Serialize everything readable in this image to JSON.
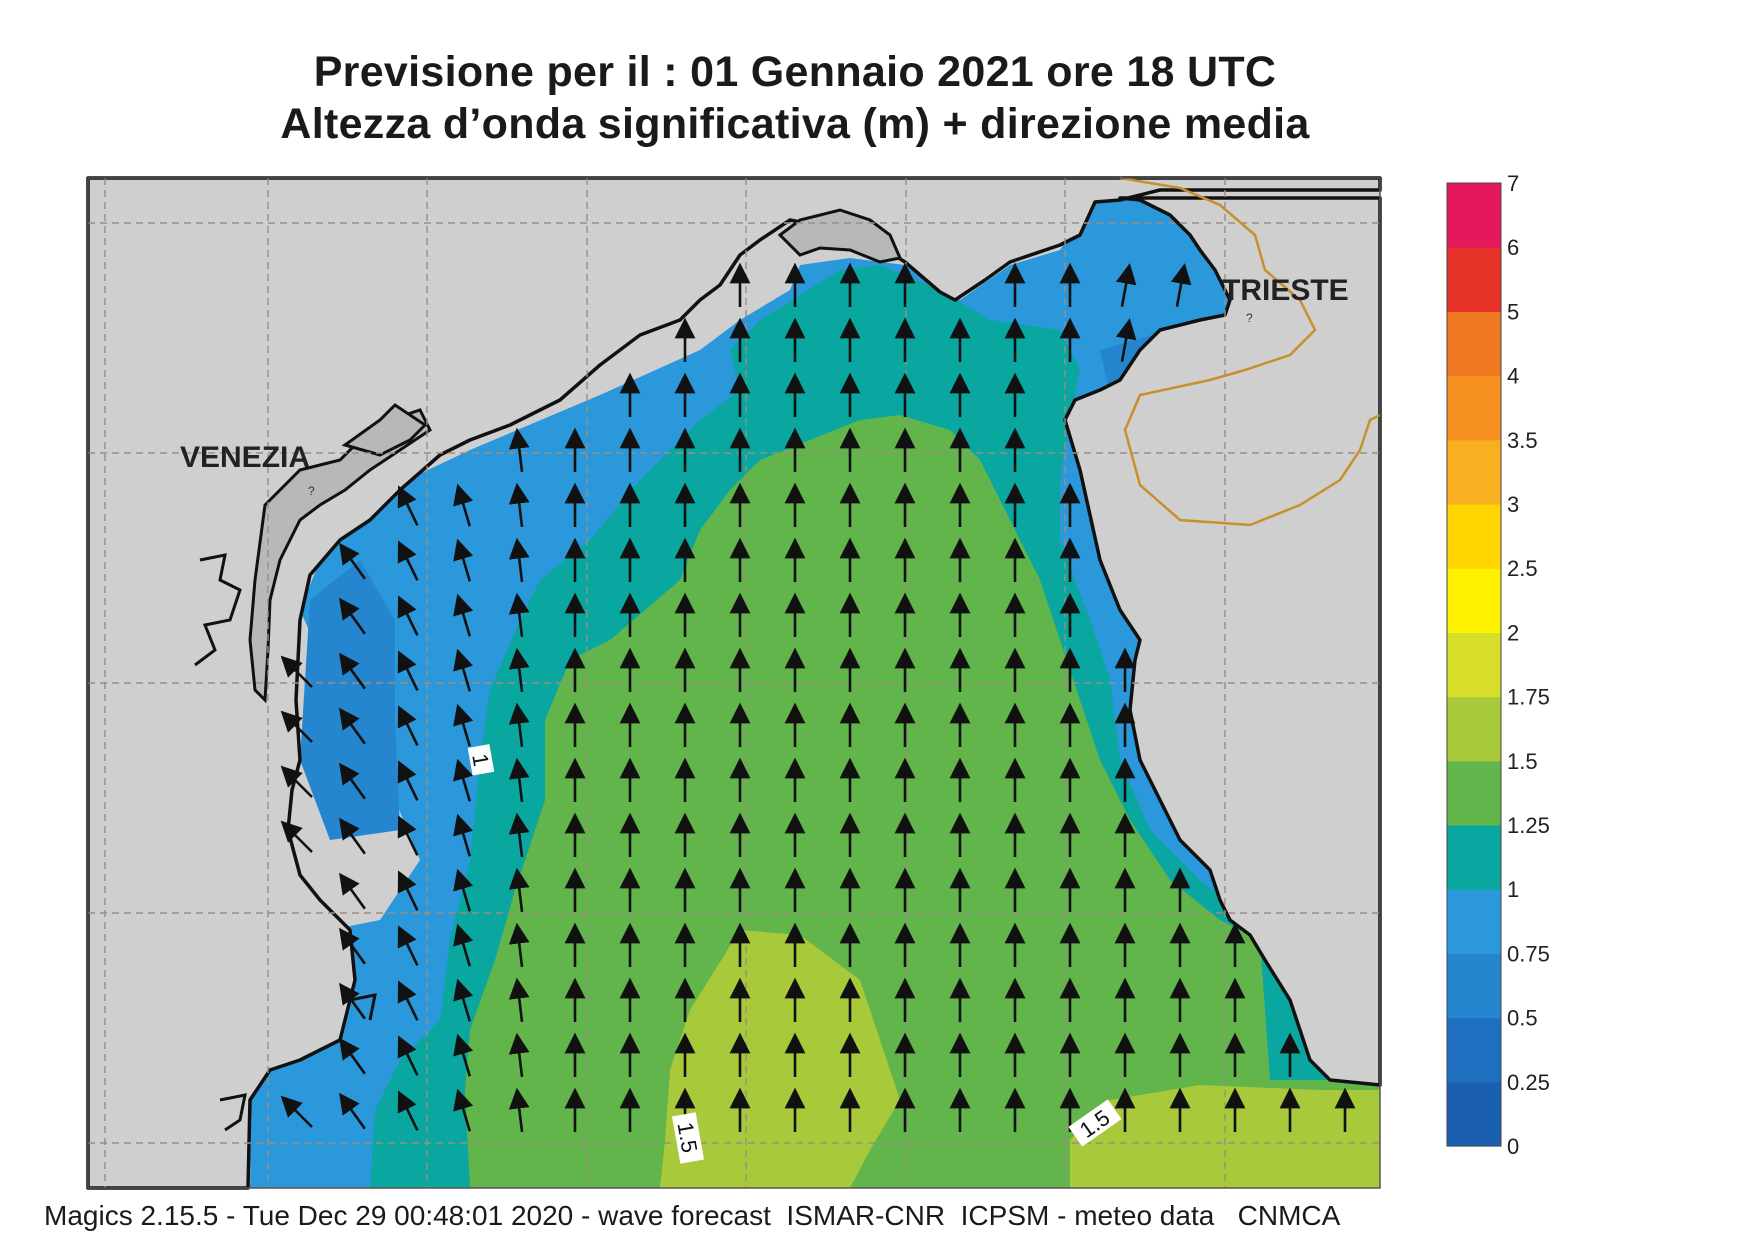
{
  "header": {
    "title_line1": "Previsione per il  :  01  Gennaio  2021   ore 18 UTC",
    "title_line2": "Altezza d’onda significativa (m) + direzione media"
  },
  "map": {
    "labels": {
      "venezia": "VENEZIA",
      "trieste": "TRIESTE"
    },
    "contour_labels": [
      "1",
      "1.5",
      "1.5"
    ],
    "colors": {
      "land": "#cfcfcf",
      "coast": "#111111",
      "grid": "#9a8f80",
      "border": "#c8902a",
      "arrow": "#111111"
    },
    "arrow_direction": "north, turning north-west near the Italian coast"
  },
  "legend": {
    "levels": [
      "0",
      "0.25",
      "0.5",
      "0.75",
      "1",
      "1.25",
      "1.5",
      "1.75",
      "2",
      "2.5",
      "3",
      "3.5",
      "4",
      "5",
      "6",
      "7"
    ],
    "colors": [
      "#1a5fb0",
      "#1f6fc0",
      "#2585cf",
      "#2b98db",
      "#0aa6a0",
      "#62b54a",
      "#a8c93a",
      "#d6de2a",
      "#fff200",
      "#ffd400",
      "#f8b020",
      "#f59020",
      "#f07a22",
      "#e8332a",
      "#e4195c"
    ]
  },
  "footer": {
    "text": "Magics 2.15.5 - Tue Dec 29 00:48:01 2020 - wave forecast  ISMAR-CNR  ICPSM - meteo data   CNMCA"
  }
}
